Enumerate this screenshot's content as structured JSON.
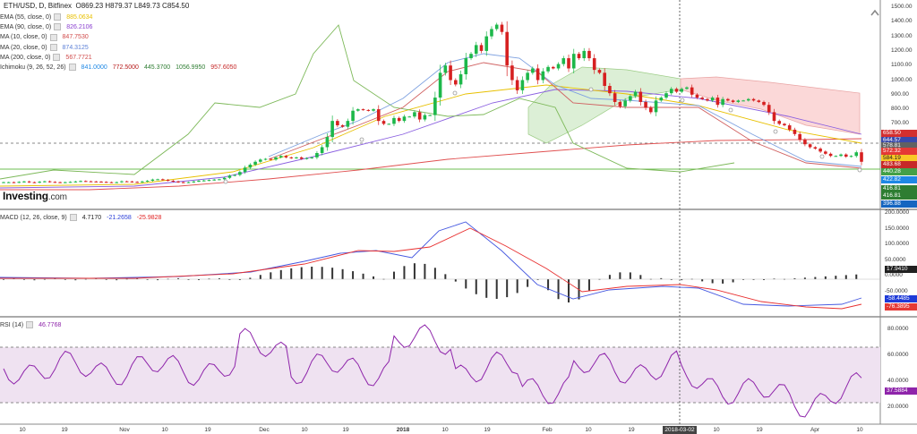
{
  "header": {
    "symbol": "ETH/USD, D, Bitfinex",
    "open": "O869.23",
    "high": "H879.37",
    "low": "L849.73",
    "close": "C854.50"
  },
  "logo": {
    "name": "Investing",
    "suffix": ".com"
  },
  "legend": [
    {
      "label": "EMA (55, close, 0)",
      "values": [
        "885.0634"
      ],
      "colors": [
        "#e8c000"
      ]
    },
    {
      "label": "EMA (90, close, 0)",
      "values": [
        "826.2106"
      ],
      "colors": [
        "#8a3fd0"
      ]
    },
    {
      "label": "MA (10, close, 0)",
      "values": [
        "847.7530"
      ],
      "colors": [
        "#d04a4a"
      ]
    },
    {
      "label": "MA (20, close, 0)",
      "values": [
        "874.3125"
      ],
      "colors": [
        "#5b7fd6"
      ]
    },
    {
      "label": "MA (200, close, 0)",
      "values": [
        "567.7721"
      ],
      "colors": [
        "#d04a4a"
      ]
    },
    {
      "label": "Ichimoku (9, 26, 52, 26)",
      "values": [
        "841.0000",
        "772.5000",
        "445.3700",
        "1056.9950",
        "957.6050"
      ],
      "colors": [
        "#1e88e5",
        "#b71c1c",
        "#2e7d32",
        "#2e7d32",
        "#c62828"
      ]
    }
  ],
  "macd_legend": {
    "label": "MACD (12, 26, close, 9)",
    "values": [
      "4.7170",
      "-21.2658",
      "-25.9828"
    ],
    "colors": [
      "#222222",
      "#2b3fd8",
      "#e02020"
    ]
  },
  "rsi_legend": {
    "label": "RSI (14)",
    "values": [
      "46.7768"
    ],
    "colors": [
      "#8e24aa"
    ]
  },
  "price_axis": {
    "ticks": [
      "1500.00",
      "1400.00",
      "1300.00",
      "1200.00",
      "1100.00",
      "1000.00",
      "900.00",
      "800.00",
      "700.00",
      "600.00",
      "500.00"
    ]
  },
  "macd_axis": {
    "ticks": [
      "200.0000",
      "150.0000",
      "100.0000",
      "50.0000",
      "0.0000",
      "-50.0000",
      "-100.0000"
    ]
  },
  "rsi_axis": {
    "ticks": [
      "80.0000",
      "60.0000",
      "40.0000",
      "20.0000"
    ]
  },
  "price_tags": [
    {
      "text": "658.50",
      "bg": "#d32f2f"
    },
    {
      "text": "644.57",
      "bg": "#3949ab"
    },
    {
      "text": "578.81",
      "bg": "#616161"
    },
    {
      "text": "572.32",
      "bg": "#e53935"
    },
    {
      "text": "584.19",
      "bg": "#f9c825"
    },
    {
      "text": "483.68",
      "bg": "#c62828"
    },
    {
      "text": "440.28",
      "bg": "#43a047"
    },
    {
      "text": "422.82",
      "bg": "#1e88e5"
    },
    {
      "text": "416.81",
      "bg": "#2e7d32"
    },
    {
      "text": "416.81",
      "bg": "#2e7d32"
    },
    {
      "text": "396.88",
      "bg": "#1565c0"
    }
  ],
  "macd_tag": {
    "text": "17.9410",
    "bg": "#212121"
  },
  "macd_tags": [
    {
      "text": "-58.4485",
      "bg": "#1e3ad8"
    },
    {
      "text": "-76.3895",
      "bg": "#e53935"
    }
  ],
  "rsi_tag": {
    "text": "37.5884",
    "bg": "#8e24aa"
  },
  "x_axis": [
    {
      "label": "10",
      "bold": false
    },
    {
      "label": "19",
      "bold": false
    },
    {
      "label": "Nov",
      "bold": false
    },
    {
      "label": "10",
      "bold": false
    },
    {
      "label": "19",
      "bold": false
    },
    {
      "label": "Dec",
      "bold": false
    },
    {
      "label": "10",
      "bold": false
    },
    {
      "label": "19",
      "bold": false
    },
    {
      "label": "2018",
      "bold": true
    },
    {
      "label": "10",
      "bold": false
    },
    {
      "label": "19",
      "bold": false
    },
    {
      "label": "Feb",
      "bold": false
    },
    {
      "label": "10",
      "bold": false
    },
    {
      "label": "19",
      "bold": false
    },
    {
      "label": "Mar",
      "bold": false
    },
    {
      "label": "10",
      "bold": false
    },
    {
      "label": "19",
      "bold": false
    },
    {
      "label": "Apr",
      "bold": false
    },
    {
      "label": "10",
      "bold": false
    }
  ],
  "cursor_date": "2018-03-02",
  "chart_data": {
    "type": "candlestick",
    "panels": [
      "price",
      "macd",
      "rsi"
    ],
    "price_range": [
      400,
      1500
    ],
    "close_series": [
      300,
      300,
      298,
      302,
      305,
      300,
      298,
      303,
      306,
      302,
      300,
      298,
      300,
      302,
      305,
      308,
      306,
      305,
      304,
      302,
      300,
      298,
      300,
      306,
      305,
      302,
      300,
      305,
      310,
      318,
      320,
      316,
      310,
      305,
      300,
      298,
      300,
      305,
      310,
      312,
      315,
      318,
      320,
      330,
      345,
      350,
      370,
      400,
      420,
      440,
      455,
      460,
      455,
      470,
      480,
      470,
      465,
      470,
      460,
      465,
      470,
      500,
      540,
      610,
      720,
      690,
      680,
      720,
      790,
      800,
      795,
      790,
      800,
      720,
      700,
      700,
      740,
      720,
      750,
      750,
      780,
      730,
      760,
      760,
      880,
      1050,
      1100,
      1000,
      970,
      1040,
      1150,
      1180,
      1240,
      1200,
      1300,
      1350,
      1380,
      1330,
      1100,
      1000,
      930,
      1000,
      1050,
      1080,
      1000,
      1060,
      1090,
      1080,
      1110,
      1150,
      1080,
      1180,
      1150,
      1200,
      1150,
      1070,
      1050,
      960,
      910,
      850,
      820,
      860,
      890,
      920,
      850,
      810,
      780,
      860,
      880,
      910,
      940,
      920,
      940,
      950,
      900,
      880,
      870,
      860,
      880,
      830,
      870,
      860,
      850,
      860,
      860,
      870,
      860,
      850,
      830,
      780,
      720,
      700,
      690,
      660,
      630,
      590,
      560,
      540,
      530,
      510,
      495,
      480,
      480,
      490,
      475,
      480,
      505,
      440
    ],
    "macd": {
      "x_range": "Oct..Apr",
      "final": {
        "macd": -58.4485,
        "signal": -76.3895,
        "hist": 17.941
      }
    },
    "rsi": {
      "final": 37.5884,
      "bands": [
        30,
        70
      ]
    }
  }
}
